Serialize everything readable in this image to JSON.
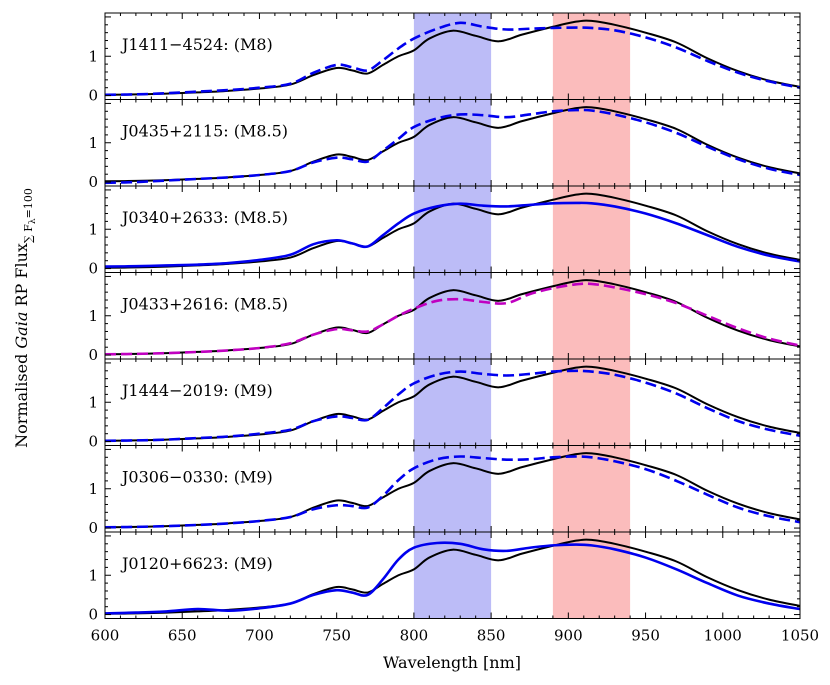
{
  "chart_data": {
    "type": "line",
    "xlabel": "Wavelength [nm]",
    "ylabel_parts": {
      "prefix": "Normalised ",
      "italic": "Gaia",
      "middle": " RP Flux",
      "subscript": "∑ F",
      "subsub": "λ",
      "subscript_tail": "=100"
    },
    "xlim": [
      600,
      1050
    ],
    "ylim": [
      -0.1,
      2.1
    ],
    "xticks": [
      600,
      650,
      700,
      750,
      800,
      850,
      900,
      950,
      1000,
      1050
    ],
    "yticks": [
      0,
      1
    ],
    "bands": [
      {
        "range": [
          800,
          850
        ],
        "color": "#bcbcf7"
      },
      {
        "range": [
          890,
          940
        ],
        "color": "#fbbcbc"
      }
    ],
    "reference_series": {
      "name": "",
      "color": "#000000",
      "x": [
        600,
        620,
        640,
        660,
        680,
        700,
        720,
        735,
        750,
        760,
        770,
        780,
        790,
        800,
        810,
        825,
        840,
        855,
        870,
        890,
        905,
        915,
        930,
        950,
        970,
        990,
        1010,
        1030,
        1050
      ],
      "y": [
        0.02,
        0.03,
        0.05,
        0.08,
        0.12,
        0.18,
        0.28,
        0.52,
        0.7,
        0.64,
        0.56,
        0.78,
        1.0,
        1.15,
        1.45,
        1.65,
        1.52,
        1.38,
        1.55,
        1.75,
        1.88,
        1.9,
        1.8,
        1.6,
        1.35,
        0.95,
        0.62,
        0.38,
        0.22
      ]
    },
    "panels": [
      {
        "label": "J1411−4524: (M8)",
        "series": {
          "name": "",
          "color": "#0000ee",
          "style": "dashed",
          "x": [
            600,
            620,
            640,
            660,
            680,
            700,
            720,
            735,
            750,
            760,
            770,
            780,
            790,
            800,
            815,
            830,
            845,
            860,
            875,
            890,
            905,
            915,
            930,
            950,
            970,
            990,
            1010,
            1030,
            1050
          ],
          "y": [
            0.02,
            0.03,
            0.06,
            0.1,
            0.14,
            0.2,
            0.3,
            0.58,
            0.78,
            0.72,
            0.64,
            0.9,
            1.2,
            1.45,
            1.7,
            1.85,
            1.75,
            1.68,
            1.7,
            1.72,
            1.73,
            1.72,
            1.66,
            1.48,
            1.22,
            0.88,
            0.58,
            0.36,
            0.2
          ]
        }
      },
      {
        "label": "J0435+2115: (M8.5)",
        "series": {
          "name": "",
          "color": "#0000ee",
          "style": "dashed",
          "x": [
            600,
            620,
            640,
            660,
            680,
            700,
            720,
            735,
            750,
            760,
            770,
            780,
            790,
            800,
            815,
            830,
            845,
            860,
            875,
            890,
            905,
            915,
            930,
            950,
            970,
            990,
            1010,
            1030,
            1050
          ],
          "y": [
            -0.02,
            0.0,
            0.04,
            0.08,
            0.12,
            0.18,
            0.28,
            0.5,
            0.62,
            0.58,
            0.52,
            0.8,
            1.1,
            1.4,
            1.62,
            1.72,
            1.7,
            1.65,
            1.72,
            1.8,
            1.83,
            1.82,
            1.72,
            1.52,
            1.25,
            0.9,
            0.58,
            0.34,
            0.18
          ]
        }
      },
      {
        "label": "J0340+2633: (M8.5)",
        "series": {
          "name": "",
          "color": "#0000ee",
          "style": "solid",
          "x": [
            600,
            620,
            640,
            660,
            680,
            700,
            720,
            735,
            750,
            760,
            770,
            780,
            790,
            800,
            815,
            830,
            845,
            860,
            875,
            890,
            905,
            915,
            930,
            950,
            970,
            990,
            1010,
            1030,
            1050
          ],
          "y": [
            0.05,
            0.06,
            0.08,
            0.1,
            0.14,
            0.22,
            0.35,
            0.62,
            0.72,
            0.64,
            0.56,
            0.85,
            1.15,
            1.4,
            1.58,
            1.65,
            1.6,
            1.58,
            1.62,
            1.66,
            1.67,
            1.66,
            1.58,
            1.4,
            1.15,
            0.85,
            0.55,
            0.33,
            0.18
          ]
        }
      },
      {
        "label": "J0433+2616: (M8.5)",
        "series": {
          "name": "",
          "color": "#c000c0",
          "style": "dashed",
          "x": [
            600,
            620,
            640,
            660,
            680,
            700,
            720,
            735,
            750,
            760,
            770,
            780,
            790,
            800,
            815,
            830,
            845,
            860,
            875,
            890,
            905,
            915,
            930,
            950,
            970,
            990,
            1010,
            1030,
            1050
          ],
          "y": [
            0.02,
            0.03,
            0.05,
            0.08,
            0.12,
            0.18,
            0.3,
            0.52,
            0.66,
            0.63,
            0.6,
            0.78,
            1.0,
            1.18,
            1.38,
            1.42,
            1.35,
            1.32,
            1.55,
            1.7,
            1.8,
            1.81,
            1.72,
            1.55,
            1.32,
            1.0,
            0.68,
            0.42,
            0.24
          ]
        }
      },
      {
        "label": "J1444−2019: (M9)",
        "series": {
          "name": "",
          "color": "#0000ee",
          "style": "dashed",
          "x": [
            600,
            620,
            640,
            660,
            680,
            700,
            720,
            735,
            750,
            760,
            770,
            780,
            790,
            800,
            815,
            830,
            845,
            860,
            875,
            890,
            905,
            915,
            930,
            950,
            970,
            990,
            1010,
            1030,
            1050
          ],
          "y": [
            0.02,
            0.03,
            0.05,
            0.09,
            0.13,
            0.2,
            0.3,
            0.52,
            0.64,
            0.6,
            0.55,
            0.85,
            1.2,
            1.48,
            1.7,
            1.78,
            1.72,
            1.68,
            1.72,
            1.78,
            1.8,
            1.78,
            1.7,
            1.5,
            1.22,
            0.85,
            0.52,
            0.3,
            0.15
          ]
        }
      },
      {
        "label": "J0306−0330: (M9)",
        "series": {
          "name": "",
          "color": "#0000ee",
          "style": "dashed",
          "x": [
            600,
            620,
            640,
            660,
            680,
            700,
            720,
            735,
            750,
            760,
            770,
            780,
            790,
            800,
            815,
            830,
            845,
            860,
            875,
            890,
            905,
            915,
            930,
            950,
            970,
            990,
            1010,
            1030,
            1050
          ],
          "y": [
            0.02,
            0.03,
            0.05,
            0.08,
            0.12,
            0.18,
            0.28,
            0.48,
            0.58,
            0.56,
            0.52,
            0.82,
            1.22,
            1.52,
            1.75,
            1.82,
            1.78,
            1.74,
            1.75,
            1.8,
            1.82,
            1.8,
            1.7,
            1.5,
            1.2,
            0.85,
            0.52,
            0.3,
            0.15
          ]
        }
      },
      {
        "label": "J0120+6623: (M9)",
        "series": {
          "name": "",
          "color": "#0000ee",
          "style": "solid",
          "x": [
            600,
            620,
            640,
            660,
            680,
            700,
            720,
            735,
            750,
            760,
            770,
            780,
            790,
            800,
            815,
            830,
            845,
            860,
            875,
            890,
            905,
            915,
            930,
            950,
            970,
            990,
            1010,
            1030,
            1050
          ],
          "y": [
            0.03,
            0.05,
            0.08,
            0.14,
            0.1,
            0.16,
            0.28,
            0.5,
            0.62,
            0.56,
            0.5,
            0.9,
            1.4,
            1.7,
            1.82,
            1.8,
            1.66,
            1.62,
            1.7,
            1.76,
            1.78,
            1.76,
            1.66,
            1.45,
            1.15,
            0.8,
            0.48,
            0.28,
            0.14
          ]
        }
      }
    ]
  }
}
